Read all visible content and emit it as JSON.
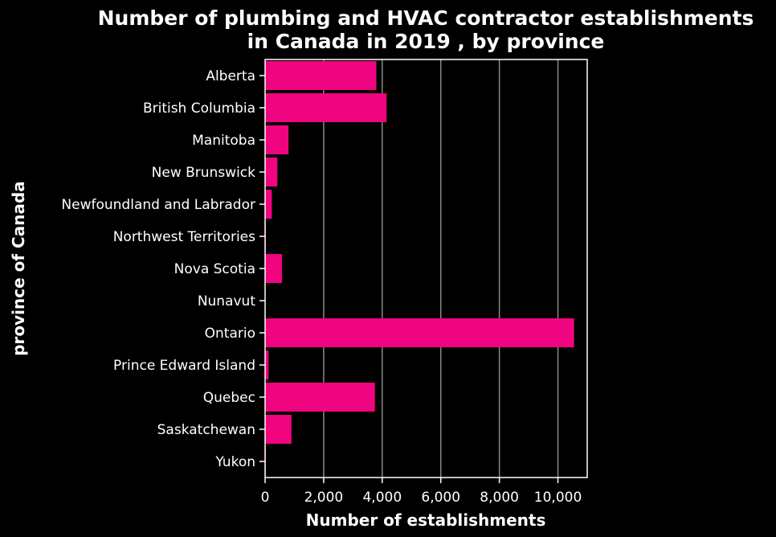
{
  "chart_data": {
    "type": "bar",
    "orientation": "horizontal",
    "title": "Number of plumbing and HVAC contractor establishments in Canada in 2019 , by province",
    "title_lines": [
      "Number of plumbing and HVAC contractor establishments",
      "in Canada in 2019 , by province"
    ],
    "xlabel": "Number of establishments",
    "ylabel": "province of Canada",
    "categories": [
      "Alberta",
      "British Columbia",
      "Manitoba",
      "New Brunswick",
      "Newfoundland and Labrador",
      "Northwest Territories",
      "Nova Scotia",
      "Nunavut",
      "Ontario",
      "Prince Edward Island",
      "Quebec",
      "Saskatchewan",
      "Yukon"
    ],
    "values": [
      3800,
      4150,
      800,
      420,
      230,
      25,
      580,
      5,
      10550,
      120,
      3750,
      900,
      25
    ],
    "xlim": [
      0,
      11000
    ],
    "xticks": [
      0,
      2000,
      4000,
      6000,
      8000,
      10000
    ],
    "xtick_labels": [
      "0",
      "2,000",
      "4,000",
      "6,000",
      "8,000",
      "10,000"
    ],
    "grid": "vertical",
    "legend": "none",
    "colors": {
      "background": "#000000",
      "bar": "#f0047f",
      "text": "#ffffff",
      "grid": "#888888",
      "axis": "#ffffff"
    }
  }
}
